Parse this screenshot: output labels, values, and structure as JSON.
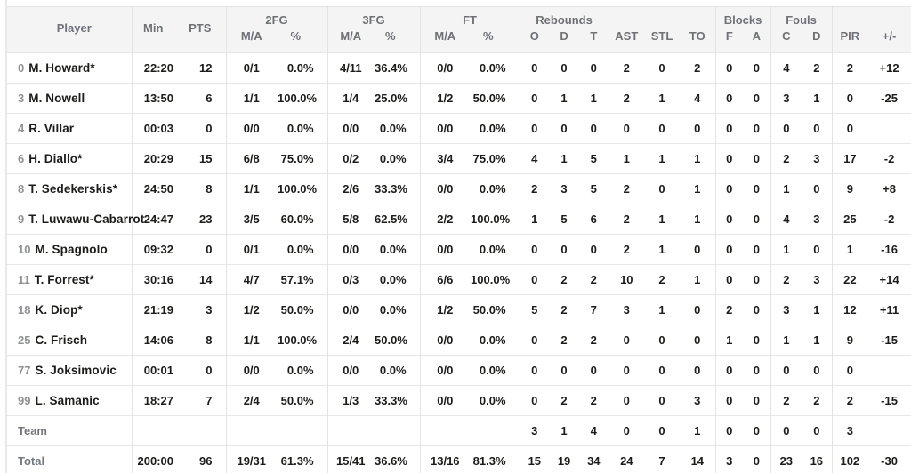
{
  "header": {
    "player": "Player",
    "min": "Min",
    "pts": "PTS",
    "ma": "M/A",
    "pct": "%",
    "reb_o": "O",
    "reb_d": "D",
    "reb_t": "T",
    "ast": "AST",
    "stl": "STL",
    "to": "TO",
    "blk_f": "F",
    "blk_a": "A",
    "foul_c": "C",
    "foul_d": "D",
    "pir": "PIR",
    "plus_minus": "+/-",
    "groups": {
      "fg2": "2FG",
      "fg3": "3FG",
      "ft": "FT",
      "rebounds": "Rebounds",
      "blocks": "Blocks",
      "fouls": "Fouls"
    }
  },
  "players": [
    {
      "number": "0",
      "name": "M. Howard*",
      "stats": [
        "22:20",
        "12",
        "0/1",
        "0.0%",
        "4/11",
        "36.4%",
        "0/0",
        "0.0%",
        "0",
        "0",
        "0",
        "2",
        "0",
        "2",
        "0",
        "0",
        "4",
        "2",
        "2",
        "+12"
      ]
    },
    {
      "number": "3",
      "name": "M. Nowell",
      "stats": [
        "13:50",
        "6",
        "1/1",
        "100.0%",
        "1/4",
        "25.0%",
        "1/2",
        "50.0%",
        "0",
        "1",
        "1",
        "2",
        "1",
        "4",
        "0",
        "0",
        "3",
        "1",
        "0",
        "-25"
      ]
    },
    {
      "number": "4",
      "name": "R. Villar",
      "stats": [
        "00:03",
        "0",
        "0/0",
        "0.0%",
        "0/0",
        "0.0%",
        "0/0",
        "0.0%",
        "0",
        "0",
        "0",
        "0",
        "0",
        "0",
        "0",
        "0",
        "0",
        "0",
        "0",
        ""
      ]
    },
    {
      "number": "6",
      "name": "H. Diallo*",
      "stats": [
        "20:29",
        "15",
        "6/8",
        "75.0%",
        "0/2",
        "0.0%",
        "3/4",
        "75.0%",
        "4",
        "1",
        "5",
        "1",
        "1",
        "1",
        "0",
        "0",
        "2",
        "3",
        "17",
        "-2"
      ]
    },
    {
      "number": "8",
      "name": "T. Sedekerskis*",
      "stats": [
        "24:50",
        "8",
        "1/1",
        "100.0%",
        "2/6",
        "33.3%",
        "0/0",
        "0.0%",
        "2",
        "3",
        "5",
        "2",
        "0",
        "1",
        "0",
        "0",
        "1",
        "0",
        "9",
        "+8"
      ]
    },
    {
      "number": "9",
      "name": "T. Luwawu-Cabarrot",
      "stats": [
        "24:47",
        "23",
        "3/5",
        "60.0%",
        "5/8",
        "62.5%",
        "2/2",
        "100.0%",
        "1",
        "5",
        "6",
        "2",
        "1",
        "1",
        "0",
        "0",
        "4",
        "3",
        "25",
        "-2"
      ]
    },
    {
      "number": "10",
      "name": "M. Spagnolo",
      "stats": [
        "09:32",
        "0",
        "0/1",
        "0.0%",
        "0/0",
        "0.0%",
        "0/0",
        "0.0%",
        "0",
        "0",
        "0",
        "2",
        "1",
        "0",
        "0",
        "0",
        "1",
        "0",
        "1",
        "-16"
      ]
    },
    {
      "number": "11",
      "name": "T. Forrest*",
      "stats": [
        "30:16",
        "14",
        "4/7",
        "57.1%",
        "0/3",
        "0.0%",
        "6/6",
        "100.0%",
        "0",
        "2",
        "2",
        "10",
        "2",
        "1",
        "0",
        "0",
        "2",
        "3",
        "22",
        "+14"
      ]
    },
    {
      "number": "18",
      "name": "K. Diop*",
      "stats": [
        "21:19",
        "3",
        "1/2",
        "50.0%",
        "0/0",
        "0.0%",
        "1/2",
        "50.0%",
        "5",
        "2",
        "7",
        "3",
        "1",
        "0",
        "2",
        "0",
        "3",
        "1",
        "12",
        "+11"
      ]
    },
    {
      "number": "25",
      "name": "C. Frisch",
      "stats": [
        "14:06",
        "8",
        "1/1",
        "100.0%",
        "2/4",
        "50.0%",
        "0/0",
        "0.0%",
        "0",
        "2",
        "2",
        "0",
        "0",
        "0",
        "1",
        "0",
        "1",
        "1",
        "9",
        "-15"
      ]
    },
    {
      "number": "77",
      "name": "S. Joksimovic",
      "stats": [
        "00:01",
        "0",
        "0/0",
        "0.0%",
        "0/0",
        "0.0%",
        "0/0",
        "0.0%",
        "0",
        "0",
        "0",
        "0",
        "0",
        "0",
        "0",
        "0",
        "0",
        "0",
        "0",
        ""
      ]
    },
    {
      "number": "99",
      "name": "L. Samanic",
      "stats": [
        "18:27",
        "7",
        "2/4",
        "50.0%",
        "1/3",
        "33.3%",
        "0/0",
        "0.0%",
        "0",
        "2",
        "2",
        "0",
        "0",
        "3",
        "0",
        "0",
        "2",
        "2",
        "2",
        "-15"
      ]
    }
  ],
  "team_row": {
    "label": "Team",
    "stats": [
      "",
      "",
      "",
      "",
      "",
      "",
      "",
      "",
      "3",
      "1",
      "4",
      "0",
      "0",
      "1",
      "0",
      "0",
      "0",
      "0",
      "3",
      ""
    ]
  },
  "total_row": {
    "label": "Total",
    "stats": [
      "200:00",
      "96",
      "19/31",
      "61.3%",
      "15/41",
      "36.6%",
      "13/16",
      "81.3%",
      "15",
      "19",
      "34",
      "24",
      "7",
      "14",
      "3",
      "0",
      "23",
      "16",
      "102",
      "-30"
    ]
  },
  "colors": {
    "header_bg": "#f4f4f5",
    "border": "#e3e3e4",
    "text_dark": "#1c1c1a",
    "text_gray": "#75787c",
    "player_number_gray": "#8f9295"
  }
}
